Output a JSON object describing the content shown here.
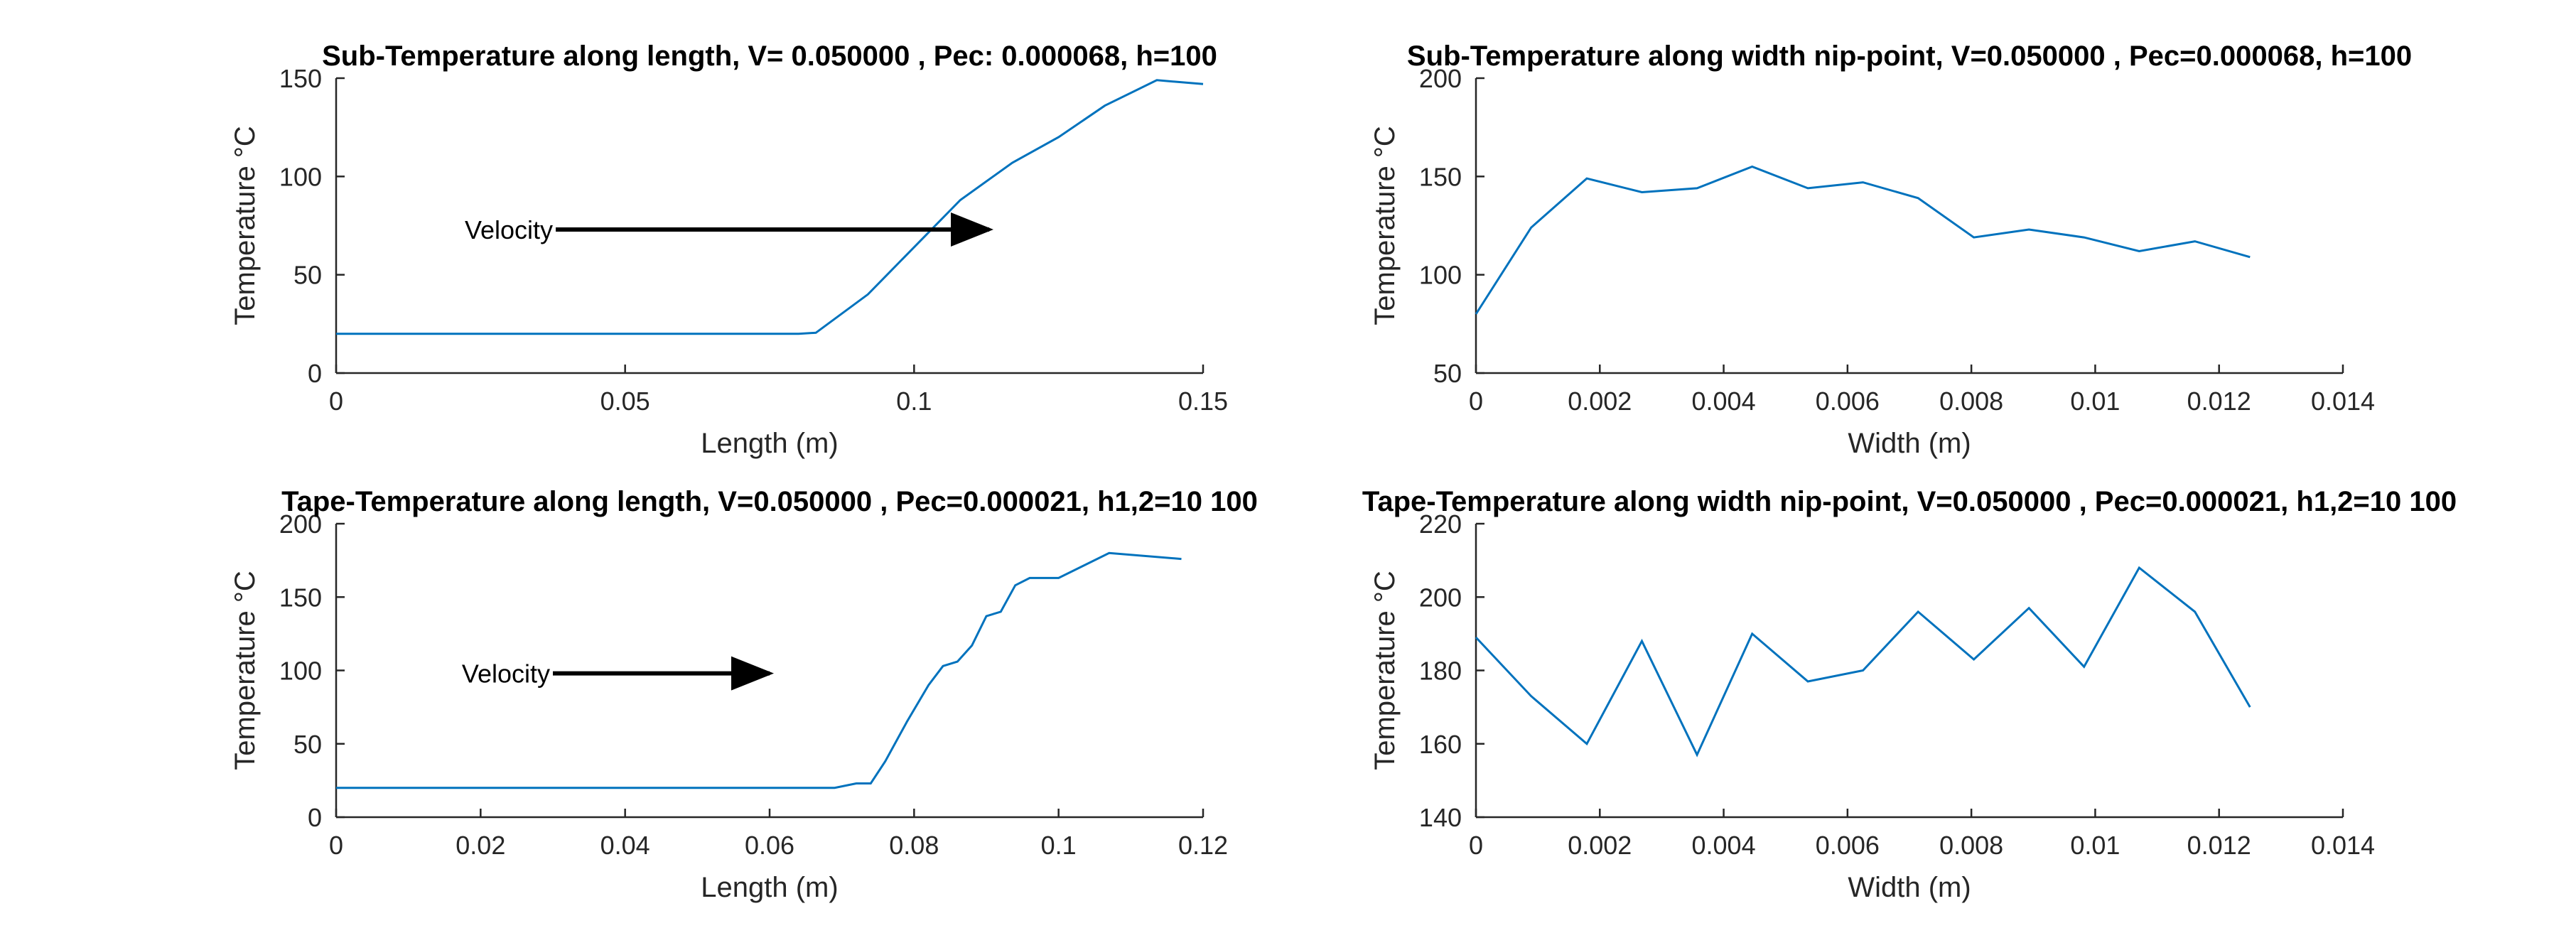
{
  "figure": {
    "background": "#ffffff",
    "line_color": "#0072BD",
    "axis_color": "#262626"
  },
  "chart_data": [
    {
      "type": "line",
      "title": "Sub-Temperature along length, V= 0.050000 , Pec: 0.000068, h=100",
      "xlabel": "Length (m)",
      "ylabel": "Temperature °C",
      "xlim": [
        0,
        0.15
      ],
      "ylim": [
        0,
        150
      ],
      "xticks": [
        0,
        0.05,
        0.1,
        0.15
      ],
      "xtick_labels": [
        "0",
        "0.05",
        "0.1",
        "0.15"
      ],
      "yticks": [
        0,
        50,
        100,
        150
      ],
      "ytick_labels": [
        "0",
        "50",
        "100",
        "150"
      ],
      "grid": false,
      "x": [
        0,
        0.01,
        0.02,
        0.03,
        0.04,
        0.05,
        0.06,
        0.07,
        0.08,
        0.083,
        0.092,
        0.1,
        0.108,
        0.117,
        0.125,
        0.133,
        0.142,
        0.15
      ],
      "y": [
        20,
        20,
        20,
        20,
        20,
        20,
        20,
        20,
        20,
        20.5,
        40,
        64,
        88,
        107,
        120,
        136,
        149,
        147
      ],
      "annotation": {
        "text": "Velocity",
        "arrow_x": [
          0.038,
          0.113
        ],
        "arrow_y": 73
      }
    },
    {
      "type": "line",
      "title": "Sub-Temperature along width nip-point, V=0.050000 , Pec=0.000068, h=100",
      "xlabel": "Width (m)",
      "ylabel": "Temperature °C",
      "xlim": [
        0,
        0.014
      ],
      "ylim": [
        50,
        200
      ],
      "xticks": [
        0,
        0.002,
        0.004,
        0.006,
        0.008,
        0.01,
        0.012,
        0.014
      ],
      "xtick_labels": [
        "0",
        "0.002",
        "0.004",
        "0.006",
        "0.008",
        "0.01",
        "0.012",
        "0.014"
      ],
      "yticks": [
        50,
        100,
        150,
        200
      ],
      "ytick_labels": [
        "50",
        "100",
        "150",
        "200"
      ],
      "grid": false,
      "x": [
        0,
        0.00089,
        0.00179,
        0.00268,
        0.00357,
        0.00446,
        0.00536,
        0.00625,
        0.00714,
        0.00804,
        0.00893,
        0.00982,
        0.01071,
        0.01161,
        0.0125
      ],
      "y": [
        80,
        124,
        149,
        142,
        144,
        155,
        144,
        147,
        139,
        119,
        123,
        119,
        112,
        117,
        109
      ]
    },
    {
      "type": "line",
      "title": "Tape-Temperature along length, V=0.050000 , Pec=0.000021, h1,2=10 100",
      "xlabel": "Length (m)",
      "ylabel": "Temperature °C",
      "xlim": [
        0,
        0.12
      ],
      "ylim": [
        0,
        200
      ],
      "xticks": [
        0,
        0.02,
        0.04,
        0.06,
        0.08,
        0.1,
        0.12
      ],
      "xtick_labels": [
        "0",
        "0.02",
        "0.04",
        "0.06",
        "0.08",
        "0.1",
        "0.12"
      ],
      "yticks": [
        0,
        50,
        100,
        150,
        200
      ],
      "ytick_labels": [
        "0",
        "50",
        "100",
        "150",
        "200"
      ],
      "grid": false,
      "x": [
        0,
        0.01,
        0.02,
        0.03,
        0.04,
        0.05,
        0.06,
        0.069,
        0.072,
        0.074,
        0.076,
        0.079,
        0.082,
        0.084,
        0.086,
        0.088,
        0.09,
        0.092,
        0.094,
        0.096,
        0.098,
        0.1,
        0.107,
        0.117
      ],
      "y": [
        20,
        20,
        20,
        20,
        20,
        20,
        20,
        20,
        23,
        23,
        38,
        65,
        90,
        103,
        106,
        117,
        137,
        140,
        158,
        163,
        163,
        163,
        180,
        176
      ],
      "annotation": {
        "text": "Velocity",
        "arrow_x": [
          0.03,
          0.06
        ],
        "arrow_y": 98
      }
    },
    {
      "type": "line",
      "title": "Tape-Temperature along width nip-point, V=0.050000 , Pec=0.000021, h1,2=10 100",
      "xlabel": "Width (m)",
      "ylabel": "Temperature °C",
      "xlim": [
        0,
        0.014
      ],
      "ylim": [
        140,
        220
      ],
      "xticks": [
        0,
        0.002,
        0.004,
        0.006,
        0.008,
        0.01,
        0.012,
        0.014
      ],
      "xtick_labels": [
        "0",
        "0.002",
        "0.004",
        "0.006",
        "0.008",
        "0.01",
        "0.012",
        "0.014"
      ],
      "yticks": [
        140,
        160,
        180,
        200,
        220
      ],
      "ytick_labels": [
        "140",
        "160",
        "180",
        "200",
        "220"
      ],
      "grid": false,
      "x": [
        0,
        0.00089,
        0.00179,
        0.00268,
        0.00357,
        0.00446,
        0.00536,
        0.00625,
        0.00714,
        0.00804,
        0.00893,
        0.00982,
        0.01071,
        0.01161,
        0.0125
      ],
      "y": [
        189,
        173,
        160,
        188,
        157,
        190,
        177,
        180,
        196,
        183,
        197,
        181,
        208,
        196,
        170
      ]
    }
  ]
}
